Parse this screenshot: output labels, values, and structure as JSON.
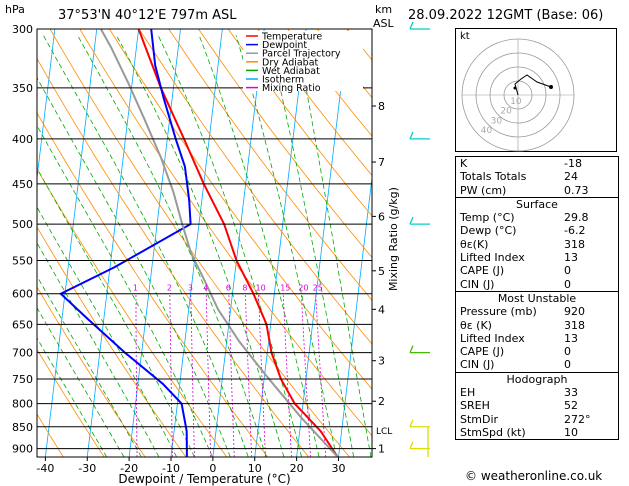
{
  "header": {
    "hpa_label": "hPa",
    "location": "37°53'N  40°12'E  797m  ASL",
    "km_label": "km",
    "asl_label": "ASL",
    "datetime": "28.09.2022  12GMT  (Base: 06)"
  },
  "chart_data": {
    "type": "line",
    "xlabel": "Dewpoint / Temperature (°C)",
    "ylabel": "hPa",
    "secondary_ylabel": "Mixing Ratio (g/kg)",
    "xlim": [
      -42,
      38
    ],
    "ylim": [
      920,
      300
    ],
    "grid": true,
    "x_ticks": [
      "-40",
      "-30",
      "-20",
      "-10",
      "0",
      "10",
      "20",
      "30"
    ],
    "pressure_levels": [
      300,
      350,
      400,
      450,
      500,
      550,
      600,
      650,
      700,
      750,
      800,
      850,
      900
    ],
    "km_ticks": [
      {
        "label": "8",
        "p": 367
      },
      {
        "label": "7",
        "p": 425
      },
      {
        "label": "6",
        "p": 490
      },
      {
        "label": "5",
        "p": 565
      },
      {
        "label": "4",
        "p": 625
      },
      {
        "label": "3",
        "p": 715
      },
      {
        "label": "2",
        "p": 795
      },
      {
        "label": "1",
        "p": 900
      }
    ],
    "lcl_label": "LCL",
    "mixing_ratio_labels": [
      "1",
      "2",
      "3",
      "4",
      "6",
      "8",
      "10",
      "15",
      "20",
      "25"
    ],
    "mixing_ratio_values": [
      1,
      2,
      3,
      4,
      6,
      8,
      10,
      15,
      20,
      25
    ],
    "legend": {
      "position": "top-left",
      "items": [
        {
          "label": "Temperature",
          "color": "#ff0000"
        },
        {
          "label": "Dewpoint",
          "color": "#0000ff"
        },
        {
          "label": "Parcel Trajectory",
          "color": "#999999"
        },
        {
          "label": "Dry Adiabat",
          "color": "#ff8c00"
        },
        {
          "label": "Wet Adiabat",
          "color": "#00aa00"
        },
        {
          "label": "Isotherm",
          "color": "#00aaff"
        },
        {
          "label": "Mixing Ratio",
          "color": "#dd00dd"
        }
      ]
    },
    "series": [
      {
        "name": "Temperature",
        "color": "#ff0000",
        "points": [
          [
            29.8,
            920
          ],
          [
            25,
            860
          ],
          [
            18,
            800
          ],
          [
            14,
            750
          ],
          [
            11,
            700
          ],
          [
            9,
            650
          ],
          [
            5,
            600
          ],
          [
            0,
            550
          ],
          [
            -4,
            500
          ],
          [
            -10,
            450
          ],
          [
            -16,
            400
          ],
          [
            -23,
            350
          ],
          [
            -30,
            300
          ]
        ]
      },
      {
        "name": "Dewpoint",
        "color": "#0000ff",
        "points": [
          [
            -6.2,
            920
          ],
          [
            -7,
            860
          ],
          [
            -9,
            800
          ],
          [
            -14,
            760
          ],
          [
            -24,
            700
          ],
          [
            -34,
            640
          ],
          [
            -41,
            600
          ],
          [
            -29,
            560
          ],
          [
            -12,
            500
          ],
          [
            -13,
            470
          ],
          [
            -15,
            430
          ],
          [
            -18,
            400
          ],
          [
            -22,
            360
          ],
          [
            -25,
            330
          ],
          [
            -27,
            300
          ]
        ]
      },
      {
        "name": "Parcel Trajectory",
        "color": "#999999",
        "points": [
          [
            29.8,
            920
          ],
          [
            20,
            830
          ],
          [
            10,
            740
          ],
          [
            3,
            680
          ],
          [
            -3,
            625
          ],
          [
            -7,
            580
          ],
          [
            -11,
            540
          ],
          [
            -14,
            500
          ],
          [
            -17,
            460
          ],
          [
            -21,
            420
          ],
          [
            -26,
            380
          ],
          [
            -31,
            345
          ],
          [
            -36,
            315
          ],
          [
            -39,
            300
          ]
        ]
      }
    ]
  },
  "wind_barb_color": "#00cccc",
  "hodograph": {
    "label": "kt",
    "ring_labels": [
      "10",
      "20",
      "30",
      "40"
    ],
    "trace_color": "#000000"
  },
  "indices": {
    "k_label": "K",
    "k": "-18",
    "tt_label": "Totals Totals",
    "tt": "24",
    "pw_label": "PW (cm)",
    "pw": "0.73",
    "surface": {
      "title": "Surface",
      "temp_label": "Temp (°C)",
      "temp": "29.8",
      "dewp_label": "Dewp (°C)",
      "dewp": "-6.2",
      "thetae_label": "θε(K)",
      "thetae": "318",
      "li_label": "Lifted Index",
      "li": "13",
      "cape_label": "CAPE (J)",
      "cape": "0",
      "cin_label": "CIN (J)",
      "cin": "0"
    },
    "unstable": {
      "title": "Most Unstable",
      "pres_label": "Pressure (mb)",
      "pres": "920",
      "thetae_label": "θε (K)",
      "thetae": "318",
      "li_label": "Lifted Index",
      "li": "13",
      "cape_label": "CAPE (J)",
      "cape": "0",
      "cin_label": "CIN (J)",
      "cin": "0"
    },
    "hodo": {
      "title": "Hodograph",
      "eh_label": "EH",
      "eh": "33",
      "sreh_label": "SREH",
      "sreh": "52",
      "stmdir_label": "StmDir",
      "stmdir": "272°",
      "stmspd_label": "StmSpd (kt)",
      "stmspd": "10"
    }
  },
  "copyright": "© weatheronline.co.uk"
}
